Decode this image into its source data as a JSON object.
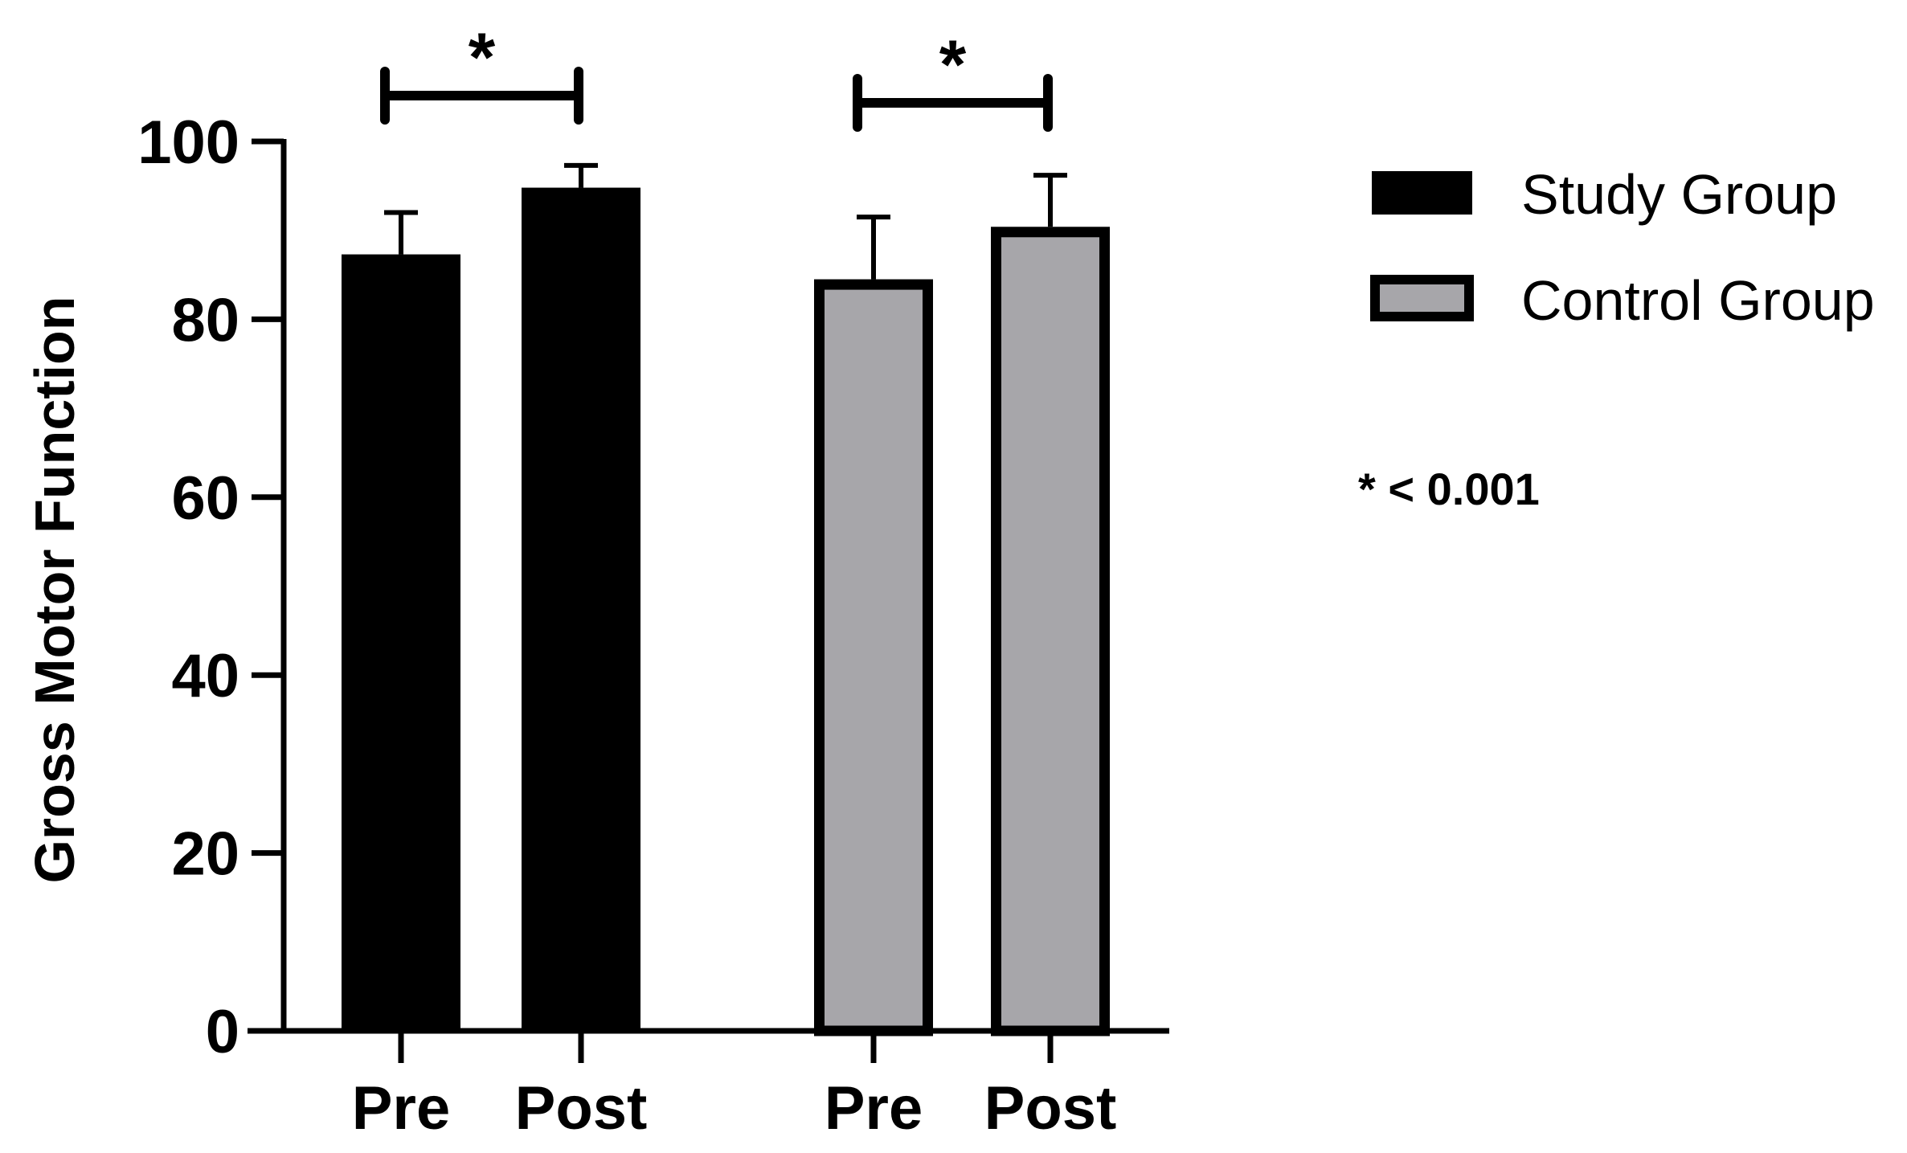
{
  "chart_data": {
    "type": "bar",
    "title": "",
    "xlabel": "",
    "ylabel": "Gross Motor Function",
    "ylim": [
      0,
      100
    ],
    "yticks": [
      0,
      20,
      40,
      60,
      80,
      100
    ],
    "grid": false,
    "legend_position": "right",
    "categories": [
      "Pre",
      "Post",
      "Pre",
      "Post"
    ],
    "series": [
      {
        "name": "Study Group",
        "color": "#000000",
        "values": [
          87.3,
          94.8,
          null,
          null
        ],
        "errors": [
          4.7,
          2.5,
          null,
          null
        ]
      },
      {
        "name": "Control Group",
        "color": "#a7a6aa",
        "values": [
          null,
          null,
          84.5,
          90.4
        ],
        "errors": [
          null,
          null,
          7.0,
          5.8
        ]
      }
    ],
    "significance": [
      {
        "between": [
          0,
          1
        ],
        "label": "*"
      },
      {
        "between": [
          2,
          3
        ],
        "label": "*"
      }
    ],
    "annotation": "* < 0.001"
  }
}
